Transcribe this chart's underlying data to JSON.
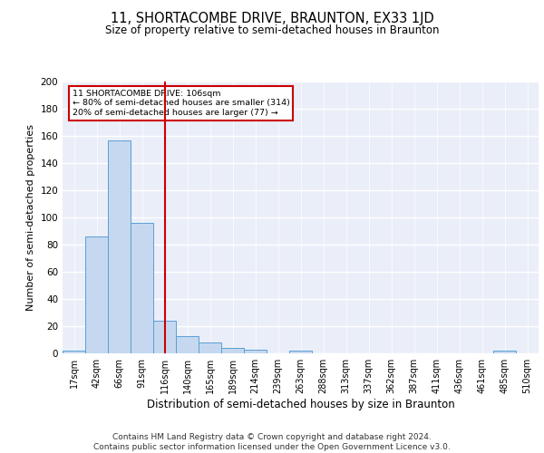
{
  "title": "11, SHORTACOMBE DRIVE, BRAUNTON, EX33 1JD",
  "subtitle": "Size of property relative to semi-detached houses in Braunton",
  "xlabel": "Distribution of semi-detached houses by size in Braunton",
  "ylabel": "Number of semi-detached properties",
  "bin_labels": [
    "17sqm",
    "42sqm",
    "66sqm",
    "91sqm",
    "116sqm",
    "140sqm",
    "165sqm",
    "189sqm",
    "214sqm",
    "239sqm",
    "263sqm",
    "288sqm",
    "313sqm",
    "337sqm",
    "362sqm",
    "387sqm",
    "411sqm",
    "436sqm",
    "461sqm",
    "485sqm",
    "510sqm"
  ],
  "bin_values": [
    2,
    86,
    157,
    96,
    24,
    13,
    8,
    4,
    3,
    0,
    2,
    0,
    0,
    0,
    0,
    0,
    0,
    0,
    0,
    2,
    0
  ],
  "bar_color": "#c5d8f0",
  "bar_edge_color": "#5a9fd4",
  "red_line_x": 4,
  "annotation_text": "11 SHORTACOMBE DRIVE: 106sqm\n← 80% of semi-detached houses are smaller (314)\n20% of semi-detached houses are larger (77) →",
  "annotation_box_color": "#ffffff",
  "annotation_box_edge": "#cc0000",
  "vline_color": "#cc0000",
  "ylim": [
    0,
    200
  ],
  "yticks": [
    0,
    20,
    40,
    60,
    80,
    100,
    120,
    140,
    160,
    180,
    200
  ],
  "footer_text": "Contains HM Land Registry data © Crown copyright and database right 2024.\nContains public sector information licensed under the Open Government Licence v3.0.",
  "background_color": "#eaeef8",
  "grid_color": "#ffffff",
  "title_fontsize": 10.5,
  "subtitle_fontsize": 8.5,
  "xlabel_fontsize": 8.5,
  "ylabel_fontsize": 8,
  "footer_fontsize": 6.5,
  "tick_fontsize": 7
}
